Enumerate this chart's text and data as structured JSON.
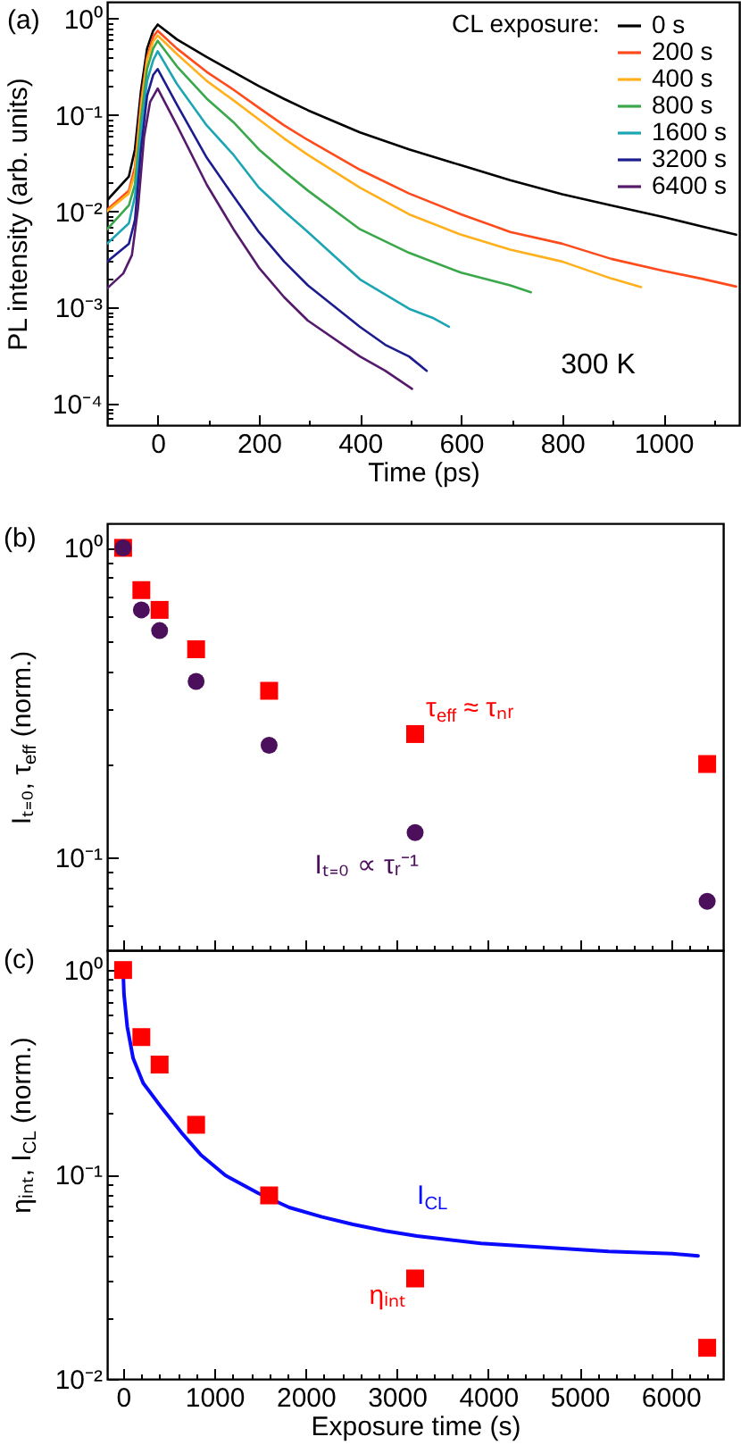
{
  "chart_data": [
    {
      "type": "line",
      "title": "(a)",
      "xlabel": "Time (ps)",
      "ylabel": "PL intensity (arb. units)",
      "legend_title": "CL exposure:",
      "legend": "top right",
      "log": "y",
      "xlim": [
        -100,
        1150
      ],
      "xticks": [
        0,
        {
          "value": 100,
          "label": null
        },
        200,
        {
          "value": 300,
          "label": null
        },
        400,
        {
          "value": 500,
          "label": null
        },
        600,
        {
          "value": 700,
          "label": null
        },
        800,
        {
          "value": 900,
          "label": null
        },
        1000,
        {
          "value": 1100,
          "label": null
        }
      ],
      "ylim": [
        6e-05,
        1.5
      ],
      "yticks": [
        {
          "value": 7e-05,
          "label": null
        },
        {
          "value": 8e-05,
          "label": null
        },
        {
          "value": 9e-05,
          "label": null
        },
        {
          "value": 0.0001,
          "label": "10⁻⁴"
        },
        {
          "value": 0.0002,
          "label": null
        },
        {
          "value": 0.0003,
          "label": null
        },
        {
          "value": 0.0004,
          "label": null
        },
        {
          "value": 0.0005,
          "label": null
        },
        {
          "value": 0.0006,
          "label": null
        },
        {
          "value": 0.0007,
          "label": null
        },
        {
          "value": 0.0008,
          "label": null
        },
        {
          "value": 0.0009,
          "label": null
        },
        {
          "value": 0.001,
          "label": "10⁻³"
        },
        {
          "value": 0.002,
          "label": null
        },
        {
          "value": 0.003,
          "label": null
        },
        {
          "value": 0.004,
          "label": null
        },
        {
          "value": 0.005,
          "label": null
        },
        {
          "value": 0.006,
          "label": null
        },
        {
          "value": 0.007,
          "label": null
        },
        {
          "value": 0.008,
          "label": null
        },
        {
          "value": 0.009,
          "label": null
        },
        {
          "value": 0.01,
          "label": "10⁻²"
        },
        {
          "value": 0.02,
          "label": null
        },
        {
          "value": 0.03,
          "label": null
        },
        {
          "value": 0.04,
          "label": null
        },
        {
          "value": 0.05,
          "label": null
        },
        {
          "value": 0.06,
          "label": null
        },
        {
          "value": 0.07,
          "label": null
        },
        {
          "value": 0.08,
          "label": null
        },
        {
          "value": 0.09,
          "label": null
        },
        {
          "value": 0.1,
          "label": "10⁻¹"
        },
        {
          "value": 0.2,
          "label": null
        },
        {
          "value": 0.3,
          "label": null
        },
        {
          "value": 0.4,
          "label": null
        },
        {
          "value": 0.5,
          "label": null
        },
        {
          "value": 0.6,
          "label": null
        },
        {
          "value": 0.7,
          "label": null
        },
        {
          "value": 0.8,
          "label": null
        },
        {
          "value": 0.9,
          "label": null
        },
        {
          "value": 1,
          "label": "10⁰"
        }
      ],
      "annotations": [
        "300 K"
      ],
      "series": [
        {
          "name": "0 s",
          "color": "#000000",
          "x": [
            -100,
            -57,
            -45,
            -33,
            -21,
            -9,
            0,
            38,
            97,
            150,
            200,
            250,
            297,
            400,
            497,
            600,
            697,
            800,
            897,
            1000,
            1074,
            1144
          ],
          "values": [
            0.013,
            0.023,
            0.044,
            0.18,
            0.49,
            0.75,
            0.87,
            0.61,
            0.4,
            0.28,
            0.2,
            0.147,
            0.112,
            0.066,
            0.044,
            0.03,
            0.021,
            0.015,
            0.0115,
            0.0087,
            0.007,
            0.0057
          ]
        },
        {
          "name": "200 s",
          "color": "#ff4a1c",
          "x": [
            -100,
            -57,
            -45,
            -33,
            -21,
            -9,
            0,
            38,
            97,
            150,
            200,
            250,
            297,
            400,
            497,
            600,
            697,
            800,
            897,
            1000,
            1074,
            1144
          ],
          "values": [
            0.0104,
            0.0164,
            0.029,
            0.138,
            0.4,
            0.65,
            0.75,
            0.49,
            0.28,
            0.183,
            0.119,
            0.078,
            0.055,
            0.027,
            0.0153,
            0.0093,
            0.0061,
            0.0046,
            0.0032,
            0.0024,
            0.002,
            0.00165
          ]
        },
        {
          "name": "400 s",
          "color": "#ffb01c",
          "x": [
            -100,
            -57,
            -45,
            -33,
            -21,
            -9,
            0,
            38,
            97,
            150,
            200,
            250,
            297,
            400,
            497,
            600,
            697,
            800,
            897,
            956
          ],
          "values": [
            0.01,
            0.0153,
            0.025,
            0.119,
            0.37,
            0.58,
            0.67,
            0.43,
            0.226,
            0.142,
            0.09,
            0.057,
            0.0385,
            0.0176,
            0.0093,
            0.0057,
            0.004,
            0.003,
            0.002,
            0.00163
          ]
        },
        {
          "name": "800 s",
          "color": "#3aa84a",
          "x": [
            -100,
            -57,
            -45,
            -33,
            -21,
            -9,
            0,
            38,
            97,
            150,
            200,
            250,
            297,
            400,
            497,
            600,
            697,
            738
          ],
          "values": [
            0.0065,
            0.0115,
            0.019,
            0.09,
            0.3,
            0.49,
            0.59,
            0.32,
            0.148,
            0.084,
            0.044,
            0.026,
            0.0164,
            0.0065,
            0.0037,
            0.0023,
            0.0017,
            0.00144
          ]
        },
        {
          "name": "1600 s",
          "color": "#1ea5b4",
          "x": [
            -100,
            -57,
            -45,
            -33,
            -21,
            -9,
            0,
            38,
            97,
            150,
            200,
            250,
            297,
            400,
            497,
            544,
            576
          ],
          "values": [
            0.0046,
            0.0075,
            0.0143,
            0.068,
            0.226,
            0.37,
            0.46,
            0.21,
            0.078,
            0.0385,
            0.0176,
            0.01,
            0.0061,
            0.00196,
            0.00097,
            0.00078,
            0.00063
          ]
        },
        {
          "name": "3200 s",
          "color": "#1c1c8e",
          "x": [
            -100,
            -57,
            -45,
            -33,
            -21,
            -9,
            0,
            38,
            97,
            150,
            200,
            250,
            297,
            400,
            450,
            497,
            532
          ],
          "values": [
            0.003,
            0.0046,
            0.0081,
            0.044,
            0.158,
            0.26,
            0.3,
            0.128,
            0.036,
            0.0143,
            0.0061,
            0.003,
            0.0017,
            0.00063,
            0.00041,
            0.00031,
            0.00022
          ]
        },
        {
          "name": "6400 s",
          "color": "#561a6c",
          "x": [
            -100,
            -68,
            -51,
            -39,
            -27,
            -15,
            0,
            38,
            97,
            150,
            200,
            250,
            297,
            400,
            450,
            503
          ],
          "values": [
            0.00158,
            0.00226,
            0.0035,
            0.0107,
            0.059,
            0.137,
            0.188,
            0.078,
            0.0189,
            0.0065,
            0.0026,
            0.00128,
            0.00073,
            0.00031,
            0.00022,
            0.000143
          ]
        }
      ]
    },
    {
      "type": "scatter",
      "title": "(b)",
      "ylabel": "Iₜ₌₀, τ$_{eff}$ (norm.)",
      "log": "y",
      "tick_labels": "y",
      "x": [
        0,
        200,
        400,
        800,
        1600,
        3200,
        6400
      ],
      "xlim": [
        -175,
        6575
      ],
      "xticks": [
        0,
        {
          "value": 200,
          "label": null
        },
        {
          "value": 400,
          "label": null
        },
        {
          "value": 600,
          "label": null
        },
        {
          "value": 800,
          "label": null
        },
        1000,
        {
          "value": 1200,
          "label": null
        },
        {
          "value": 1400,
          "label": null
        },
        {
          "value": 1600,
          "label": null
        },
        {
          "value": 1800,
          "label": null
        },
        2000,
        {
          "value": 2200,
          "label": null
        },
        {
          "value": 2400,
          "label": null
        },
        {
          "value": 2600,
          "label": null
        },
        {
          "value": 2800,
          "label": null
        },
        3000,
        {
          "value": 3200,
          "label": null
        },
        {
          "value": 3400,
          "label": null
        },
        {
          "value": 3600,
          "label": null
        },
        {
          "value": 3800,
          "label": null
        },
        4000,
        {
          "value": 4200,
          "label": null
        },
        {
          "value": 4400,
          "label": null
        },
        {
          "value": 4600,
          "label": null
        },
        {
          "value": 4800,
          "label": null
        },
        5000,
        {
          "value": 5200,
          "label": null
        },
        {
          "value": 5400,
          "label": null
        },
        {
          "value": 5600,
          "label": null
        },
        {
          "value": 5800,
          "label": null
        },
        6000,
        {
          "value": 6200,
          "label": null
        },
        {
          "value": 6400,
          "label": null
        }
      ],
      "ylim": [
        0.05,
        1.2
      ],
      "yticks": [
        {
          "value": 0.06,
          "label": null
        },
        {
          "value": 0.07,
          "label": null
        },
        {
          "value": 0.08,
          "label": null
        },
        {
          "value": 0.09,
          "label": null
        },
        {
          "value": 0.1,
          "label": "10⁻¹"
        },
        {
          "value": 0.2,
          "label": null
        },
        {
          "value": 0.3,
          "label": null
        },
        {
          "value": 0.4,
          "label": null
        },
        {
          "value": 0.5,
          "label": null
        },
        {
          "value": 0.6,
          "label": null
        },
        {
          "value": 0.7,
          "label": null
        },
        {
          "value": 0.8,
          "label": null
        },
        {
          "value": 0.9,
          "label": null
        },
        {
          "value": 1,
          "label": "10⁰"
        }
      ],
      "series": [
        {
          "name": "τ$_{eff}$ ≈ τₙᵣ",
          "color": "#ff0000",
          "marker": "square",
          "values": [
            1,
            0.73,
            0.63,
            0.47,
            0.345,
            0.25,
            0.2
          ]
        },
        {
          "name": "Iₜ₌₀ ∝ τᵣ⁻¹",
          "color": "#4b0f5c",
          "marker": "circle",
          "values": [
            1,
            0.63,
            0.54,
            0.37,
            0.23,
            0.12,
            0.072
          ]
        }
      ]
    },
    {
      "type": "scatter",
      "title": "(c)",
      "xlabel": "Exposure time (s)",
      "ylabel": "ηᵢₙₜ, I$_{CL}$ (norm.)",
      "log": "y",
      "x": [
        0,
        200,
        400,
        800,
        1600,
        3200,
        6400
      ],
      "xlim": [
        -175,
        6575
      ],
      "xticks": [
        0,
        {
          "value": 200,
          "label": null
        },
        {
          "value": 400,
          "label": null
        },
        {
          "value": 600,
          "label": null
        },
        {
          "value": 800,
          "label": null
        },
        1000,
        {
          "value": 1200,
          "label": null
        },
        {
          "value": 1400,
          "label": null
        },
        {
          "value": 1600,
          "label": null
        },
        {
          "value": 1800,
          "label": null
        },
        2000,
        {
          "value": 2200,
          "label": null
        },
        {
          "value": 2400,
          "label": null
        },
        {
          "value": 2600,
          "label": null
        },
        {
          "value": 2800,
          "label": null
        },
        3000,
        {
          "value": 3200,
          "label": null
        },
        {
          "value": 3400,
          "label": null
        },
        {
          "value": 3600,
          "label": null
        },
        {
          "value": 3800,
          "label": null
        },
        4000,
        {
          "value": 4200,
          "label": null
        },
        {
          "value": 4400,
          "label": null
        },
        {
          "value": 4600,
          "label": null
        },
        {
          "value": 4800,
          "label": null
        },
        5000,
        {
          "value": 5200,
          "label": null
        },
        {
          "value": 5400,
          "label": null
        },
        {
          "value": 5600,
          "label": null
        },
        {
          "value": 5800,
          "label": null
        },
        6000,
        {
          "value": 6200,
          "label": null
        },
        {
          "value": 6400,
          "label": null
        }
      ],
      "ylim": [
        0.01,
        1.25
      ],
      "yticks": [
        {
          "value": 0.01,
          "label": "10⁻²"
        },
        {
          "value": 0.02,
          "label": null
        },
        {
          "value": 0.03,
          "label": null
        },
        {
          "value": 0.04,
          "label": null
        },
        {
          "value": 0.05,
          "label": null
        },
        {
          "value": 0.06,
          "label": null
        },
        {
          "value": 0.07,
          "label": null
        },
        {
          "value": 0.08,
          "label": null
        },
        {
          "value": 0.09,
          "label": null
        },
        {
          "value": 0.1,
          "label": "10⁻¹"
        },
        {
          "value": 0.2,
          "label": null
        },
        {
          "value": 0.3,
          "label": null
        },
        {
          "value": 0.4,
          "label": null
        },
        {
          "value": 0.5,
          "label": null
        },
        {
          "value": 0.6,
          "label": null
        },
        {
          "value": 0.7,
          "label": null
        },
        {
          "value": 0.8,
          "label": null
        },
        {
          "value": 0.9,
          "label": null
        },
        {
          "value": 1,
          "label": "10⁰"
        }
      ],
      "series": [
        {
          "name": "I$_{CL}$",
          "type": "line",
          "color": "#0a0aff",
          "x": [
            0,
            10,
            45,
            110,
            220,
            430,
            640,
            850,
            1120,
            1480,
            1820,
            2180,
            2520,
            2870,
            3220,
            3920,
            4620,
            5320,
            6020,
            6300
          ],
          "values": [
            1,
            0.76,
            0.53,
            0.37,
            0.28,
            0.21,
            0.16,
            0.125,
            0.099,
            0.081,
            0.069,
            0.062,
            0.057,
            0.053,
            0.05,
            0.046,
            0.044,
            0.042,
            0.041,
            0.04
          ]
        },
        {
          "name": "ηᵢₙₜ",
          "color": "#ff0000",
          "marker": "square",
          "values": [
            1,
            0.47,
            0.345,
            0.175,
            0.079,
            0.031,
            0.0142
          ]
        }
      ]
    }
  ]
}
